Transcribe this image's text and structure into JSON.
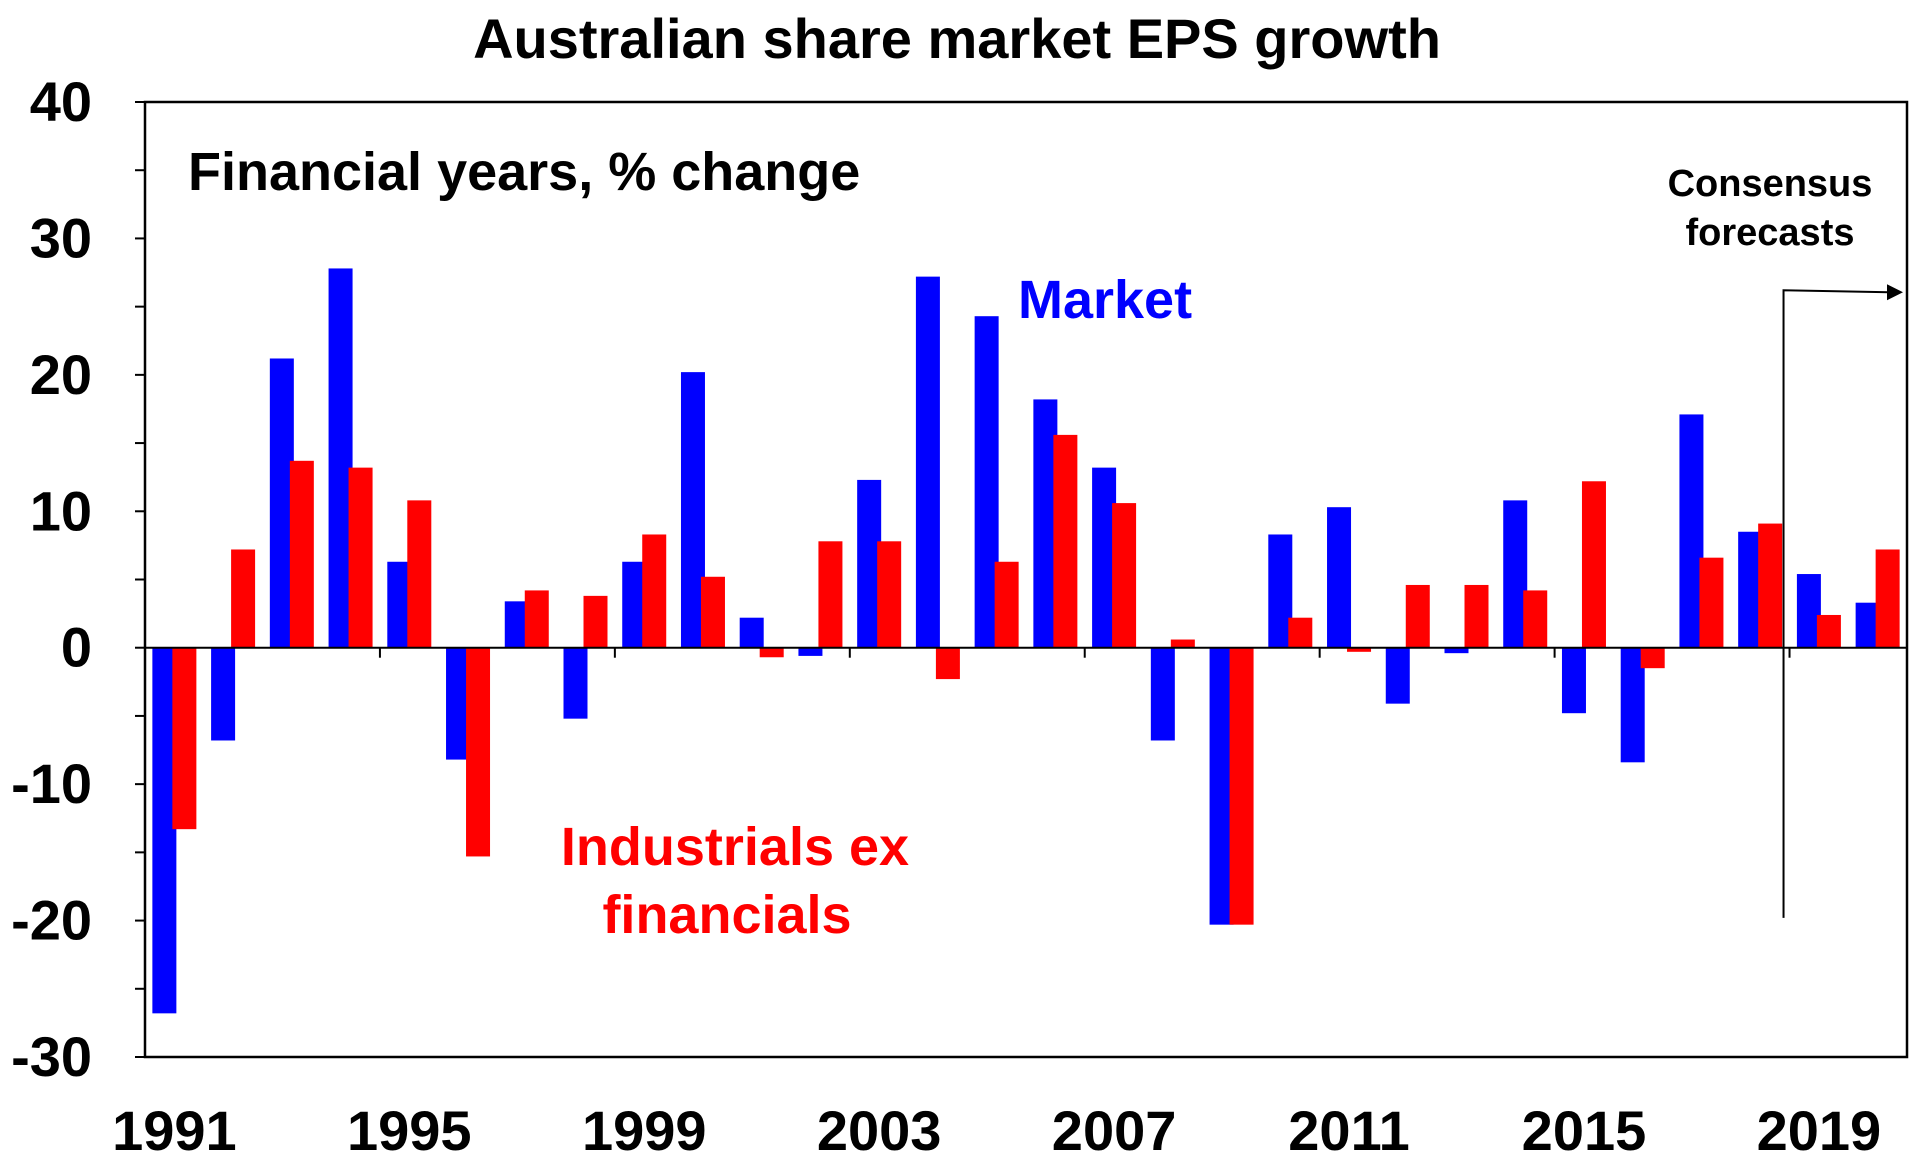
{
  "chart_data": {
    "type": "bar",
    "title": "Australian share market EPS growth",
    "subtitle": "Financial years, % change",
    "categories": [
      "1991",
      "1992",
      "1993",
      "1994",
      "1995",
      "1996",
      "1997",
      "1998",
      "1999",
      "2000",
      "2001",
      "2002",
      "2003",
      "2004",
      "2005",
      "2006",
      "2007",
      "2008",
      "2009",
      "2010",
      "2011",
      "2012",
      "2013",
      "2014",
      "2015",
      "2016",
      "2017",
      "2018",
      "2019",
      "2020"
    ],
    "x_tick_labels": [
      "1991",
      "1995",
      "1999",
      "2003",
      "2007",
      "2011",
      "2015",
      "2019"
    ],
    "ylim": [
      -30,
      40
    ],
    "y_ticks": [
      "40",
      "30",
      "20",
      "10",
      "0",
      "-10",
      "-20",
      "-30"
    ],
    "series": [
      {
        "name": "Market",
        "color": "#0000ff",
        "values": [
          -26.8,
          -6.8,
          21.2,
          27.8,
          6.3,
          -8.2,
          3.4,
          -5.2,
          6.3,
          20.2,
          2.2,
          -0.6,
          12.3,
          27.2,
          24.3,
          18.2,
          13.2,
          -6.8,
          -20.3,
          8.3,
          10.3,
          -4.1,
          -0.4,
          10.8,
          -4.8,
          -8.4,
          17.1,
          8.5,
          5.4,
          3.3
        ]
      },
      {
        "name": "Industrials ex financials",
        "name_line1": "Industrials ex",
        "name_line2": "financials",
        "color": "#ff0000",
        "values": [
          -13.3,
          7.2,
          13.7,
          13.2,
          10.8,
          -15.3,
          4.2,
          3.8,
          8.3,
          5.2,
          -0.7,
          7.8,
          7.8,
          -2.3,
          6.3,
          15.6,
          10.6,
          0.6,
          -20.3,
          2.2,
          -0.3,
          4.6,
          4.6,
          4.2,
          12.2,
          -1.5,
          6.6,
          9.1,
          2.4,
          7.2
        ]
      }
    ],
    "annotation": {
      "line1": "Consensus",
      "line2": "forecasts",
      "start_year": "2019"
    }
  }
}
